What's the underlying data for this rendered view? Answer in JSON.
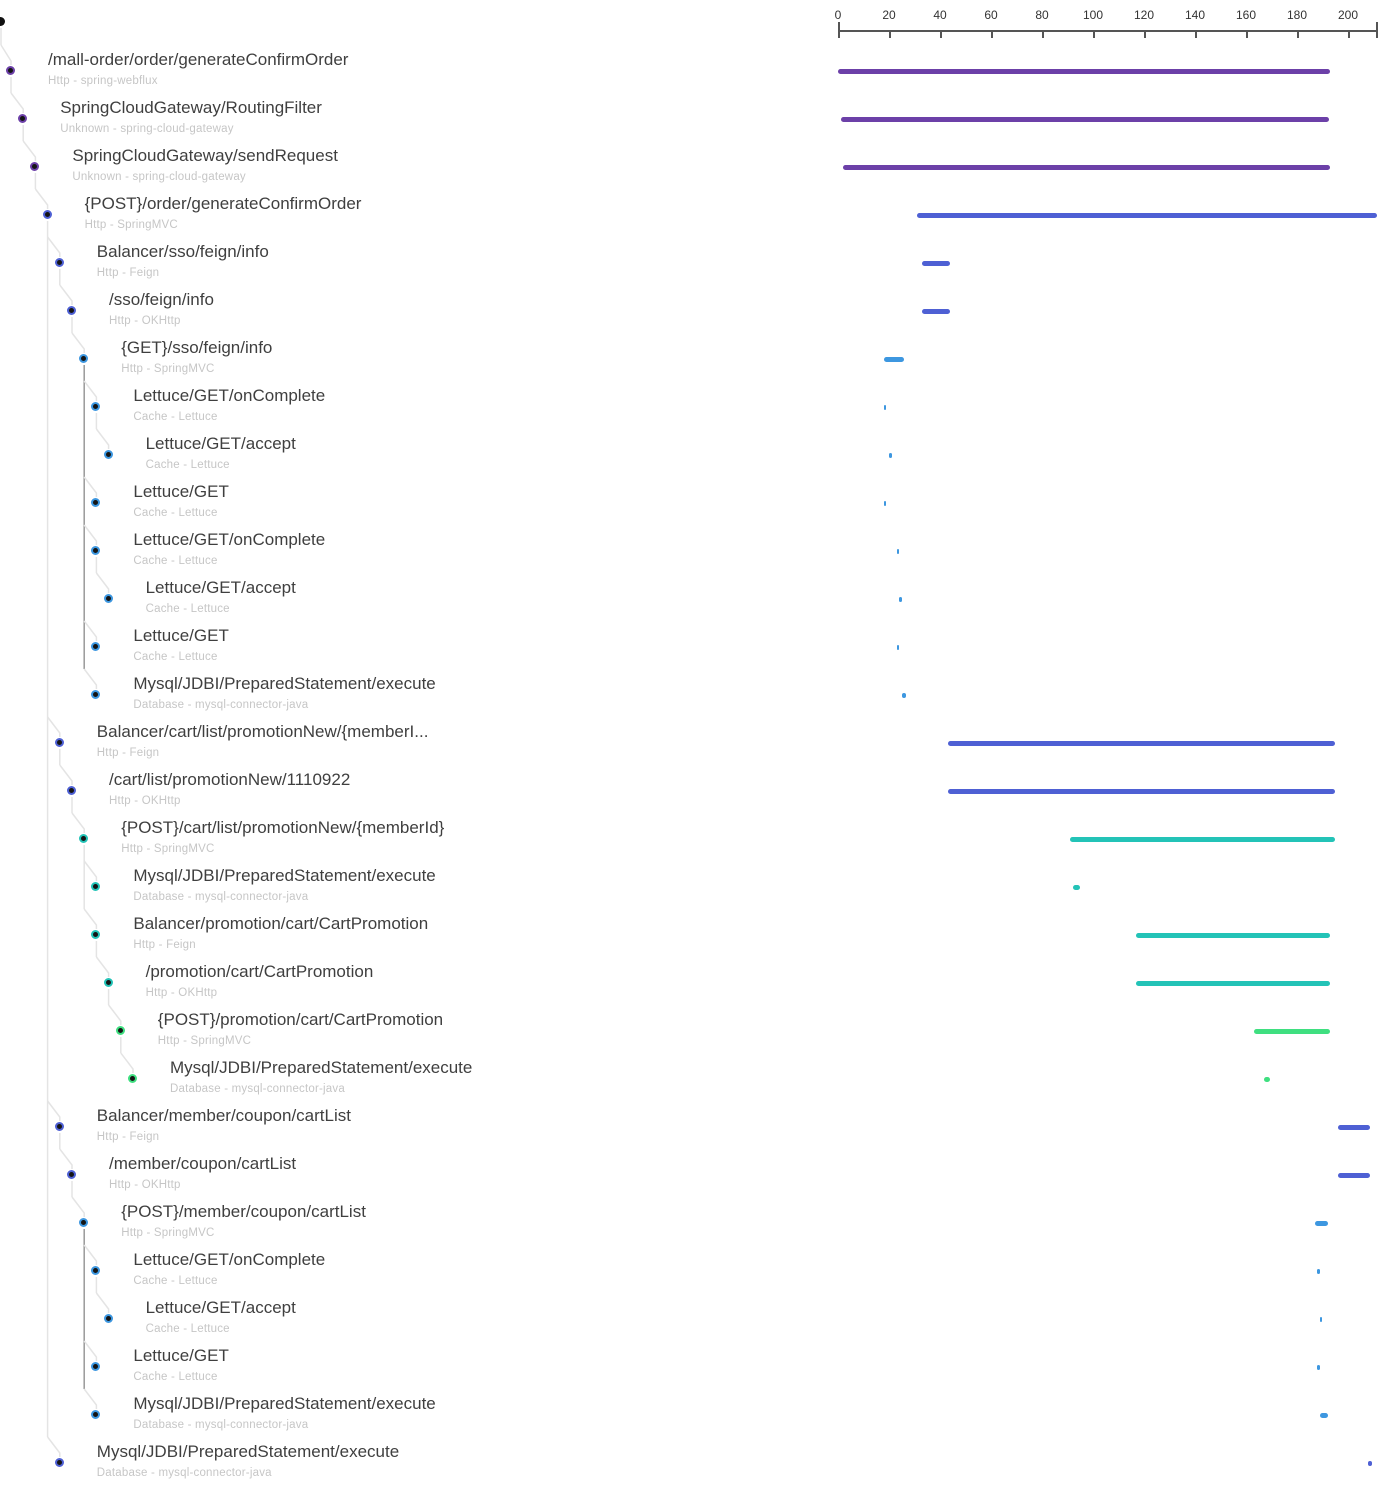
{
  "palette": {
    "purple": "#6c40a8",
    "indigo": "#4e60d4",
    "blue": "#3d97e0",
    "teal": "#23c3b7",
    "green": "#3fdf80",
    "dot_center": "#151515",
    "connector": "#e4e4e4",
    "connector_dark": "#999999",
    "title_text": "#3f3f3f",
    "subtitle_text": "#c6c6c6",
    "axis_text": "#333333"
  },
  "chart_data": {
    "type": "table",
    "title": "Trace span timeline (Gantt)",
    "axis": {
      "unit": "ms",
      "min": 0,
      "max": 211,
      "ticks": [
        "0",
        "20",
        "40",
        "60",
        "80",
        "100",
        "120",
        "140",
        "160",
        "180",
        "200"
      ]
    },
    "rows": [
      {
        "label": "/mall-order/order/generateConfirmOrder",
        "subtitle": "Http - spring-webflux",
        "depth": 0,
        "parent": -1,
        "color": "purple",
        "start": 0,
        "end": 193,
        "dark": false
      },
      {
        "label": "SpringCloudGateway/RoutingFilter",
        "subtitle": "Unknown - spring-cloud-gateway",
        "depth": 1,
        "parent": 0,
        "color": "purple",
        "start": 1,
        "end": 192.5,
        "dark": false
      },
      {
        "label": "SpringCloudGateway/sendRequest",
        "subtitle": "Unknown - spring-cloud-gateway",
        "depth": 2,
        "parent": 1,
        "color": "purple",
        "start": 2,
        "end": 193,
        "dark": false
      },
      {
        "label": "{POST}/order/generateConfirmOrder",
        "subtitle": "Http - SpringMVC",
        "depth": 3,
        "parent": 2,
        "color": "indigo",
        "start": 31,
        "end": 211.5,
        "dark": false
      },
      {
        "label": "Balancer/sso/feign/info",
        "subtitle": "Http - Feign",
        "depth": 4,
        "parent": 3,
        "color": "indigo",
        "start": 33,
        "end": 44,
        "dark": false
      },
      {
        "label": "/sso/feign/info",
        "subtitle": "Http - OKHttp",
        "depth": 5,
        "parent": 4,
        "color": "indigo",
        "start": 33,
        "end": 44,
        "dark": false
      },
      {
        "label": "{GET}/sso/feign/info",
        "subtitle": "Http - SpringMVC",
        "depth": 6,
        "parent": 5,
        "color": "blue",
        "start": 18,
        "end": 26,
        "dark": true
      },
      {
        "label": "Lettuce/GET/onComplete",
        "subtitle": "Cache - Lettuce",
        "depth": 7,
        "parent": 6,
        "color": "blue",
        "start": 18,
        "end": 19,
        "dark": false
      },
      {
        "label": "Lettuce/GET/accept",
        "subtitle": "Cache - Lettuce",
        "depth": 8,
        "parent": 7,
        "color": "blue",
        "start": 20,
        "end": 21,
        "dark": false
      },
      {
        "label": "Lettuce/GET",
        "subtitle": "Cache - Lettuce",
        "depth": 7,
        "parent": 6,
        "color": "blue",
        "start": 18,
        "end": 19,
        "dark": false
      },
      {
        "label": "Lettuce/GET/onComplete",
        "subtitle": "Cache - Lettuce",
        "depth": 7,
        "parent": 6,
        "color": "blue",
        "start": 23,
        "end": 24,
        "dark": false
      },
      {
        "label": "Lettuce/GET/accept",
        "subtitle": "Cache - Lettuce",
        "depth": 8,
        "parent": 10,
        "color": "blue",
        "start": 24,
        "end": 25,
        "dark": false
      },
      {
        "label": "Lettuce/GET",
        "subtitle": "Cache - Lettuce",
        "depth": 7,
        "parent": 6,
        "color": "blue",
        "start": 23,
        "end": 24,
        "dark": false
      },
      {
        "label": "Mysql/JDBI/PreparedStatement/execute",
        "subtitle": "Database - mysql-connector-java",
        "depth": 7,
        "parent": 6,
        "color": "blue",
        "start": 25,
        "end": 26.5,
        "dark": false
      },
      {
        "label": "Balancer/cart/list/promotionNew/{memberI...",
        "subtitle": "Http - Feign",
        "depth": 4,
        "parent": 3,
        "color": "indigo",
        "start": 43,
        "end": 195,
        "dark": false
      },
      {
        "label": "/cart/list/promotionNew/1110922",
        "subtitle": "Http - OKHttp",
        "depth": 5,
        "parent": 14,
        "color": "indigo",
        "start": 43,
        "end": 195,
        "dark": false
      },
      {
        "label": "{POST}/cart/list/promotionNew/{memberId}",
        "subtitle": "Http - SpringMVC",
        "depth": 6,
        "parent": 15,
        "color": "teal",
        "start": 91,
        "end": 195,
        "dark": false
      },
      {
        "label": "Mysql/JDBI/PreparedStatement/execute",
        "subtitle": "Database - mysql-connector-java",
        "depth": 7,
        "parent": 16,
        "color": "teal",
        "start": 92,
        "end": 95,
        "dark": false
      },
      {
        "label": "Balancer/promotion/cart/CartPromotion",
        "subtitle": "Http - Feign",
        "depth": 7,
        "parent": 16,
        "color": "teal",
        "start": 117,
        "end": 193,
        "dark": false
      },
      {
        "label": "/promotion/cart/CartPromotion",
        "subtitle": "Http - OKHttp",
        "depth": 8,
        "parent": 18,
        "color": "teal",
        "start": 117,
        "end": 193,
        "dark": false
      },
      {
        "label": "{POST}/promotion/cart/CartPromotion",
        "subtitle": "Http - SpringMVC",
        "depth": 9,
        "parent": 19,
        "color": "green",
        "start": 163,
        "end": 193,
        "dark": false
      },
      {
        "label": "Mysql/JDBI/PreparedStatement/execute",
        "subtitle": "Database - mysql-connector-java",
        "depth": 10,
        "parent": 20,
        "color": "green",
        "start": 167,
        "end": 169.5,
        "dark": false
      },
      {
        "label": "Balancer/member/coupon/cartList",
        "subtitle": "Http - Feign",
        "depth": 4,
        "parent": 3,
        "color": "indigo",
        "start": 196,
        "end": 208.5,
        "dark": false
      },
      {
        "label": "/member/coupon/cartList",
        "subtitle": "Http - OKHttp",
        "depth": 5,
        "parent": 22,
        "color": "indigo",
        "start": 196,
        "end": 208.5,
        "dark": false
      },
      {
        "label": "{POST}/member/coupon/cartList",
        "subtitle": "Http - SpringMVC",
        "depth": 6,
        "parent": 23,
        "color": "blue",
        "start": 187,
        "end": 192,
        "dark": true
      },
      {
        "label": "Lettuce/GET/onComplete",
        "subtitle": "Cache - Lettuce",
        "depth": 7,
        "parent": 24,
        "color": "blue",
        "start": 188,
        "end": 189,
        "dark": false
      },
      {
        "label": "Lettuce/GET/accept",
        "subtitle": "Cache - Lettuce",
        "depth": 8,
        "parent": 25,
        "color": "blue",
        "start": 189,
        "end": 190,
        "dark": false
      },
      {
        "label": "Lettuce/GET",
        "subtitle": "Cache - Lettuce",
        "depth": 7,
        "parent": 24,
        "color": "blue",
        "start": 188,
        "end": 189,
        "dark": false
      },
      {
        "label": "Mysql/JDBI/PreparedStatement/execute",
        "subtitle": "Database - mysql-connector-java",
        "depth": 7,
        "parent": 24,
        "color": "blue",
        "start": 189,
        "end": 192,
        "dark": false
      },
      {
        "label": "Mysql/JDBI/PreparedStatement/execute",
        "subtitle": "Database - mysql-connector-java",
        "depth": 4,
        "parent": 3,
        "color": "indigo",
        "start": 208,
        "end": 209.5,
        "dark": false
      }
    ]
  }
}
